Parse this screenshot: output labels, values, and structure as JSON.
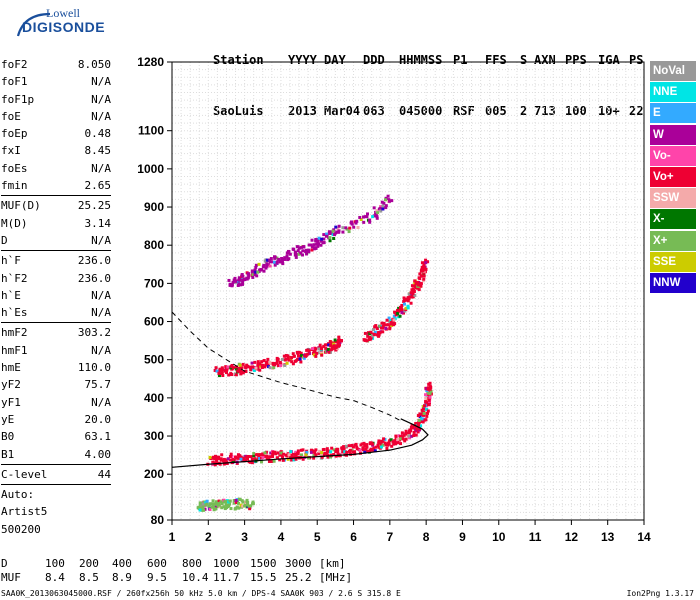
{
  "logo": {
    "line1": "Lowell",
    "line2": "DIGISONDE"
  },
  "header": {
    "labels": [
      "Station",
      "YYYY",
      "DAY",
      "DDD",
      "HHMMSS",
      "P1",
      "FFS",
      "S",
      "AXN",
      "PPS",
      "IGA",
      "PS"
    ],
    "values": [
      "SaoLuis",
      "2013",
      "Mar04",
      "063",
      "045000",
      "RSF",
      "005",
      "2",
      "713",
      "100",
      "10+",
      "22"
    ]
  },
  "params": {
    "group1": [
      {
        "name": "foF2",
        "value": "8.050"
      },
      {
        "name": "foF1",
        "value": "N/A"
      },
      {
        "name": "foF1p",
        "value": "N/A"
      },
      {
        "name": "foE",
        "value": "N/A"
      },
      {
        "name": "foEp",
        "value": "0.48"
      },
      {
        "name": "fxI",
        "value": "8.45"
      },
      {
        "name": "foEs",
        "value": "N/A"
      },
      {
        "name": "fmin",
        "value": "2.65"
      }
    ],
    "group2": [
      {
        "name": "MUF(D)",
        "value": "25.25"
      },
      {
        "name": "M(D)",
        "value": "3.14"
      },
      {
        "name": "D",
        "value": "N/A"
      }
    ],
    "group3": [
      {
        "name": "h`F",
        "value": "236.0"
      },
      {
        "name": "h`F2",
        "value": "236.0"
      },
      {
        "name": "h`E",
        "value": "N/A"
      },
      {
        "name": "h`Es",
        "value": "N/A"
      }
    ],
    "group4": [
      {
        "name": "hmF2",
        "value": "303.2"
      },
      {
        "name": "hmF1",
        "value": "N/A"
      },
      {
        "name": "hmE",
        "value": "110.0"
      },
      {
        "name": "yF2",
        "value": "75.7"
      },
      {
        "name": "yF1",
        "value": "N/A"
      },
      {
        "name": "yE",
        "value": "20.0"
      },
      {
        "name": "B0",
        "value": "63.1"
      },
      {
        "name": "B1",
        "value": "4.00"
      }
    ],
    "clevel": {
      "name": "C-level",
      "value": "44"
    },
    "auto": [
      "Auto:",
      "Artist5",
      "500200"
    ]
  },
  "muf_table": {
    "d_label": "D",
    "d_values": [
      "100",
      "200",
      "400",
      "600",
      "800",
      "1000",
      "1500",
      "3000"
    ],
    "d_unit": "[km]",
    "muf_label": "MUF",
    "muf_values": [
      "8.4",
      "8.5",
      "8.9",
      "9.5",
      "10.4",
      "11.7",
      "15.5",
      "25.2"
    ],
    "muf_unit": "[MHz]"
  },
  "bottom_line": "SAA0K_2013063045000.RSF / 260fx256h 50 kHz 5.0 km / DPS-4 SAA0K 903 / 2.6 S 315.8 E",
  "version": "Ion2Png 1.3.17",
  "legend": [
    {
      "label": "NoVal",
      "color": "#999999"
    },
    {
      "label": "NNE",
      "color": "#00e5e5"
    },
    {
      "label": "E",
      "color": "#33aaff"
    },
    {
      "label": "W",
      "color": "#aa0099"
    },
    {
      "label": "Vo-",
      "color": "#ff44aa"
    },
    {
      "label": "Vo+",
      "color": "#ee0033"
    },
    {
      "label": "SSW",
      "color": "#f4aaaa"
    },
    {
      "label": "X-",
      "color": "#007700"
    },
    {
      "label": "X+",
      "color": "#77bb55"
    },
    {
      "label": "SSE",
      "color": "#cccc00"
    },
    {
      "label": "NNW",
      "color": "#2200cc"
    }
  ],
  "chart_data": {
    "type": "scatter",
    "x_ticks": [
      1,
      2,
      3,
      4,
      5,
      6,
      7,
      8,
      9,
      10,
      11,
      12,
      13,
      14
    ],
    "y_ticks": [
      80,
      200,
      300,
      400,
      500,
      600,
      700,
      800,
      900,
      1000,
      1100,
      1280
    ],
    "xlim": [
      1,
      14
    ],
    "ylim": [
      80,
      1280
    ],
    "grid": true,
    "profile_curve": [
      [
        1.0,
        218
      ],
      [
        2.0,
        226
      ],
      [
        3.0,
        233
      ],
      [
        4.0,
        240
      ],
      [
        5.0,
        246
      ],
      [
        6.0,
        252
      ],
      [
        7.0,
        263
      ],
      [
        7.6,
        276
      ],
      [
        7.9,
        290
      ],
      [
        8.05,
        303
      ],
      [
        7.9,
        318
      ],
      [
        7.6,
        332
      ],
      [
        7.3,
        345
      ]
    ],
    "dashed_curve": [
      [
        1.0,
        625
      ],
      [
        1.5,
        575
      ],
      [
        2.0,
        530
      ],
      [
        2.5,
        500
      ],
      [
        3.0,
        470
      ],
      [
        3.5,
        455
      ],
      [
        4.0,
        440
      ],
      [
        4.5,
        428
      ],
      [
        5.0,
        415
      ],
      [
        5.5,
        402
      ],
      [
        6.0,
        393
      ],
      [
        6.5,
        375
      ],
      [
        7.0,
        355
      ],
      [
        7.3,
        340
      ]
    ],
    "traces": [
      {
        "name": "F2 first hop",
        "color": "#ee0033",
        "points": [
          [
            2.0,
            240
          ],
          [
            2.5,
            243
          ],
          [
            3.0,
            246
          ],
          [
            3.5,
            249
          ],
          [
            4.0,
            252
          ],
          [
            4.5,
            255
          ],
          [
            5.0,
            258
          ],
          [
            5.5,
            262
          ],
          [
            6.0,
            268
          ],
          [
            6.5,
            276
          ],
          [
            7.0,
            288
          ],
          [
            7.4,
            302
          ],
          [
            7.7,
            325
          ],
          [
            7.9,
            360
          ],
          [
            8.0,
            400
          ],
          [
            8.05,
            440
          ]
        ]
      },
      {
        "name": "F2 second hop",
        "color": "#ee0033",
        "points": [
          [
            2.2,
            470
          ],
          [
            2.6,
            476
          ],
          [
            3.0,
            482
          ],
          [
            3.5,
            490
          ],
          [
            4.0,
            500
          ],
          [
            4.5,
            512
          ],
          [
            5.0,
            526
          ],
          [
            5.4,
            540
          ],
          [
            5.6,
            552
          ]
        ]
      },
      {
        "name": "F2 third hop",
        "color": "#ee0033",
        "points": [
          [
            6.3,
            560
          ],
          [
            6.6,
            580
          ],
          [
            7.0,
            605
          ],
          [
            7.3,
            640
          ],
          [
            7.6,
            680
          ],
          [
            7.8,
            720
          ],
          [
            7.95,
            760
          ]
        ]
      },
      {
        "name": "multi-hop",
        "color": "#aa0099",
        "points": [
          [
            2.6,
            700
          ],
          [
            3.0,
            720
          ],
          [
            3.5,
            750
          ],
          [
            4.0,
            770
          ],
          [
            4.5,
            790
          ],
          [
            5.0,
            810
          ],
          [
            5.5,
            840
          ],
          [
            6.5,
            880
          ],
          [
            7.0,
            930
          ]
        ]
      },
      {
        "name": "sporadic",
        "color": "#77bb55",
        "points": [
          [
            1.7,
            120
          ],
          [
            2.0,
            122
          ],
          [
            2.4,
            124
          ],
          [
            2.8,
            126
          ],
          [
            3.2,
            124
          ]
        ]
      }
    ]
  }
}
